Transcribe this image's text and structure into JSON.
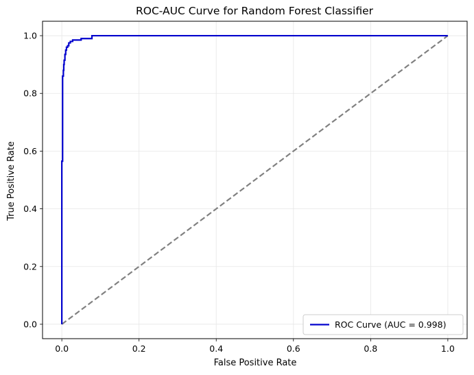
{
  "chart_data": {
    "type": "line",
    "title": "ROC-AUC Curve for Random Forest Classifier",
    "xlabel": "False Positive Rate",
    "ylabel": "True Positive Rate",
    "xlim": [
      -0.05,
      1.05
    ],
    "ylim": [
      -0.05,
      1.05
    ],
    "xticks": [
      0.0,
      0.2,
      0.4,
      0.6,
      0.8,
      1.0
    ],
    "yticks": [
      0.0,
      0.2,
      0.4,
      0.6,
      0.8,
      1.0
    ],
    "xtick_labels": [
      "0.0",
      "0.2",
      "0.4",
      "0.6",
      "0.8",
      "1.0"
    ],
    "ytick_labels": [
      "0.0",
      "0.2",
      "0.4",
      "0.6",
      "0.8",
      "1.0"
    ],
    "grid": true,
    "legend_position": "lower-right",
    "series": [
      {
        "name": "ROC Curve (AUC = 0.998)",
        "color": "#0000cd",
        "style": "solid",
        "x": [
          0.0,
          0.0,
          0.0,
          0.002,
          0.002,
          0.004,
          0.004,
          0.005,
          0.005,
          0.006,
          0.006,
          0.008,
          0.008,
          0.01,
          0.01,
          0.012,
          0.012,
          0.015,
          0.015,
          0.018,
          0.018,
          0.022,
          0.022,
          0.028,
          0.028,
          0.05,
          0.05,
          0.078,
          0.078,
          1.0
        ],
        "y": [
          0.0,
          0.56,
          0.565,
          0.565,
          0.86,
          0.86,
          0.88,
          0.88,
          0.9,
          0.9,
          0.915,
          0.915,
          0.935,
          0.935,
          0.95,
          0.95,
          0.96,
          0.96,
          0.965,
          0.965,
          0.975,
          0.975,
          0.98,
          0.98,
          0.985,
          0.985,
          0.99,
          0.99,
          1.0,
          1.0
        ]
      },
      {
        "name": "",
        "color": "#808080",
        "style": "dashed",
        "x": [
          0.0,
          1.0
        ],
        "y": [
          0.0,
          1.0
        ]
      }
    ]
  }
}
